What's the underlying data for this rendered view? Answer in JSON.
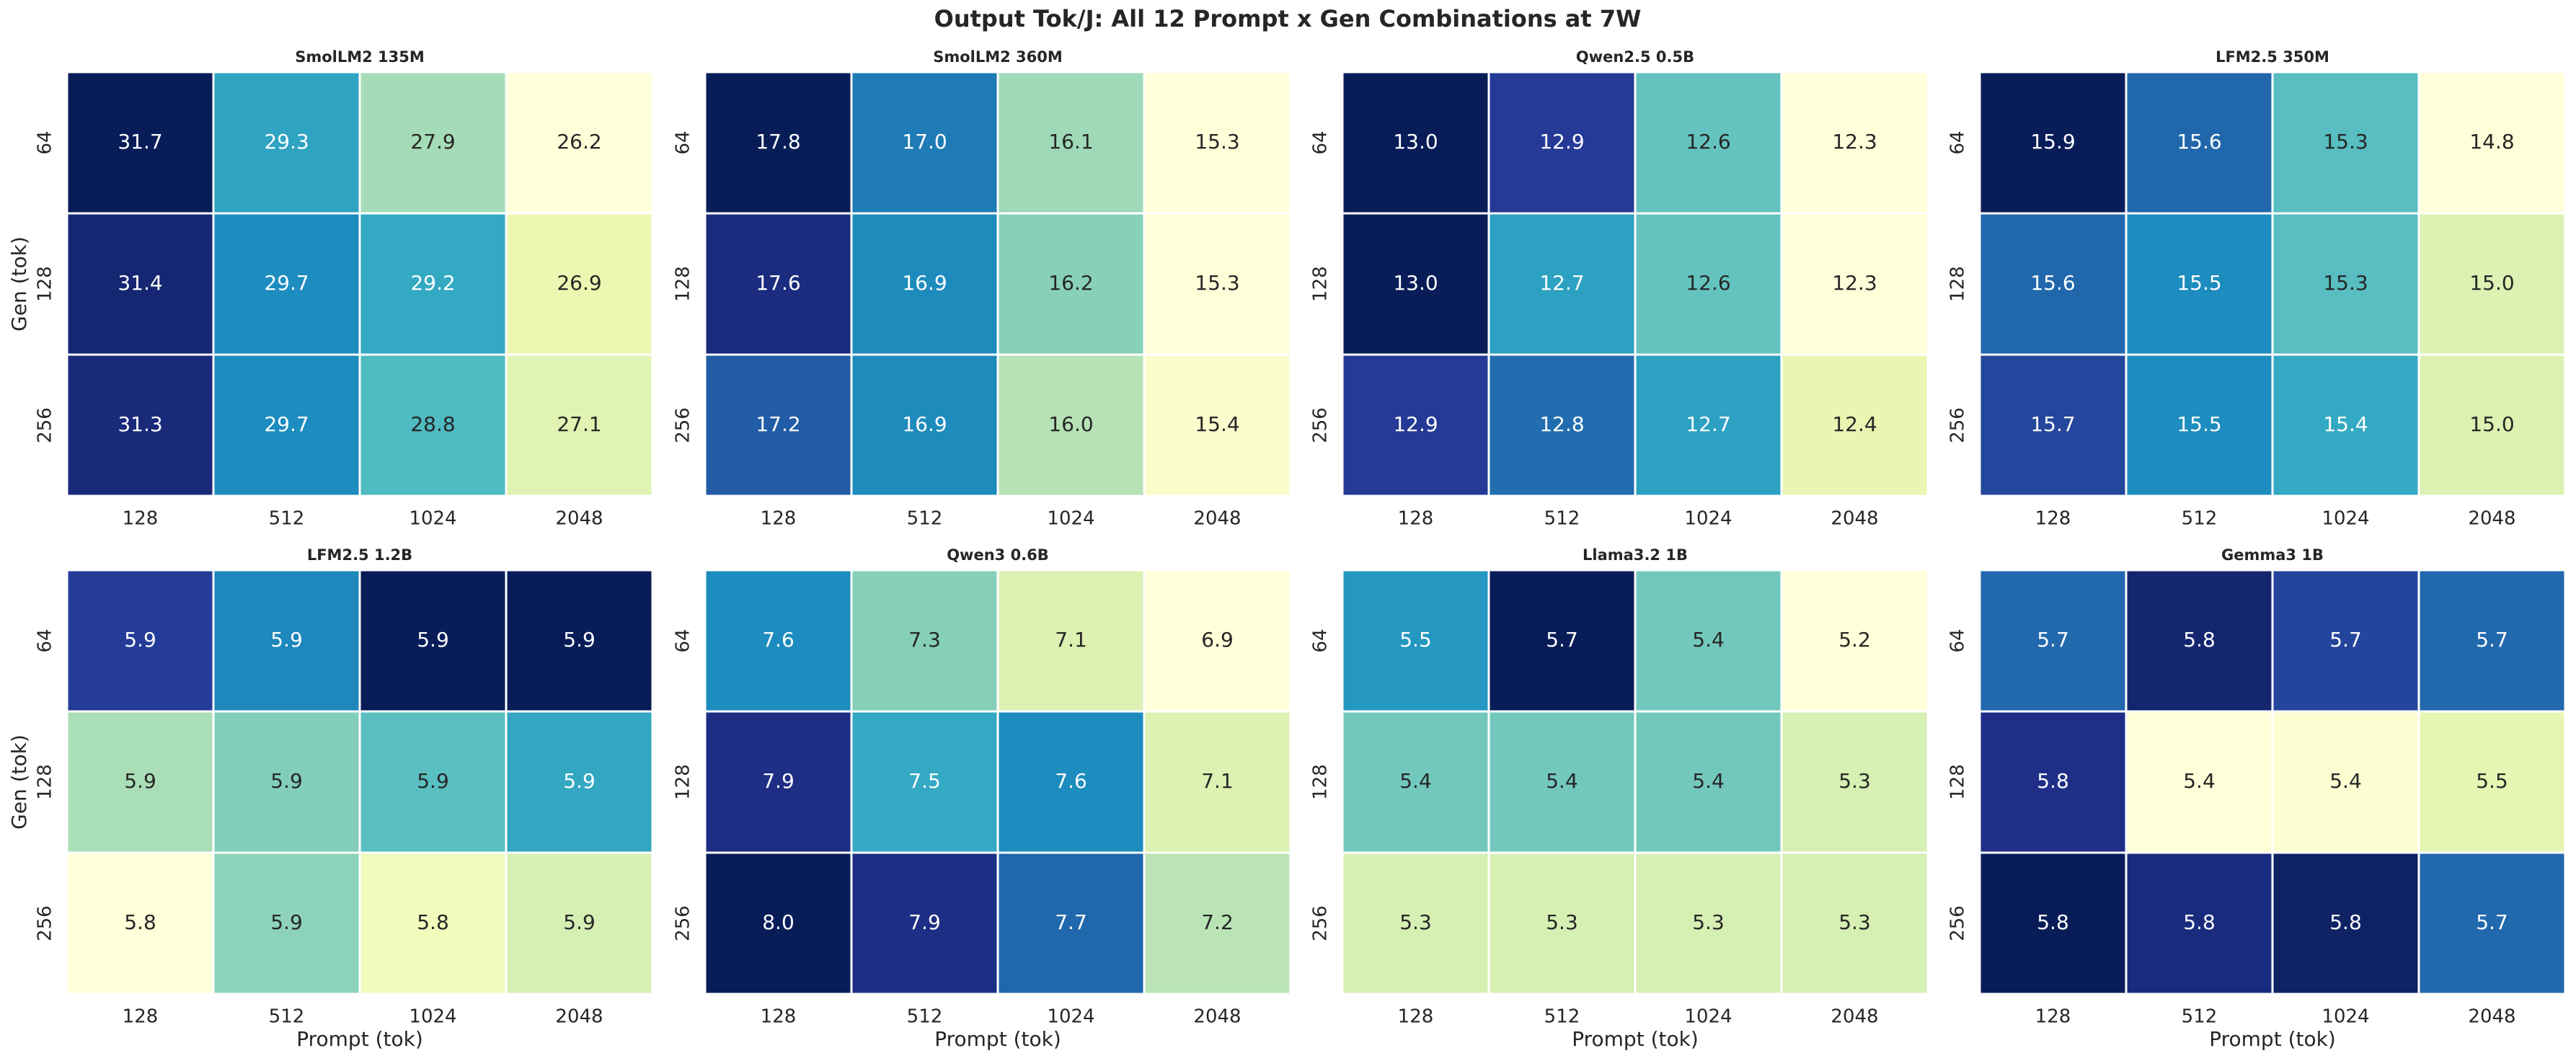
{
  "title": "Output Tok/J: All 12 Prompt x Gen Combinations at 7W",
  "chart_data": [
    {
      "type": "heatmap",
      "title": "SmolLM2 135M",
      "colormap": "YlGnBu",
      "ylabel": "Gen (tok)",
      "x_categories": [
        "128",
        "512",
        "1024",
        "2048"
      ],
      "y_categories": [
        "64",
        "128",
        "256"
      ],
      "values": [
        [
          31.7,
          29.3,
          27.9,
          26.2
        ],
        [
          31.4,
          29.7,
          29.2,
          26.9
        ],
        [
          31.3,
          29.7,
          28.8,
          27.1
        ]
      ],
      "value_labels": [
        [
          "31.7",
          "29.3",
          "27.9",
          "26.2"
        ],
        [
          "31.4",
          "29.7",
          "29.2",
          "26.9"
        ],
        [
          "31.3",
          "29.7",
          "28.8",
          "27.1"
        ]
      ]
    },
    {
      "type": "heatmap",
      "title": "SmolLM2 360M",
      "colormap": "YlGnBu",
      "x_categories": [
        "128",
        "512",
        "1024",
        "2048"
      ],
      "y_categories": [
        "64",
        "128",
        "256"
      ],
      "values": [
        [
          17.8,
          17.0,
          16.1,
          15.3
        ],
        [
          17.6,
          16.9,
          16.2,
          15.3
        ],
        [
          17.2,
          16.9,
          16.0,
          15.4
        ]
      ],
      "value_labels": [
        [
          "17.8",
          "17.0",
          "16.1",
          "15.3"
        ],
        [
          "17.6",
          "16.9",
          "16.2",
          "15.3"
        ],
        [
          "17.2",
          "16.9",
          "16.0",
          "15.4"
        ]
      ]
    },
    {
      "type": "heatmap",
      "title": "Qwen2.5 0.5B",
      "colormap": "YlGnBu",
      "x_categories": [
        "128",
        "512",
        "1024",
        "2048"
      ],
      "y_categories": [
        "64",
        "128",
        "256"
      ],
      "values": [
        [
          13.0,
          12.9,
          12.6,
          12.3
        ],
        [
          13.0,
          12.7,
          12.6,
          12.3
        ],
        [
          12.9,
          12.8,
          12.7,
          12.4
        ]
      ],
      "value_labels": [
        [
          "13.0",
          "12.9",
          "12.6",
          "12.3"
        ],
        [
          "13.0",
          "12.7",
          "12.6",
          "12.3"
        ],
        [
          "12.9",
          "12.8",
          "12.7",
          "12.4"
        ]
      ]
    },
    {
      "type": "heatmap",
      "title": "LFM2.5 350M",
      "colormap": "YlGnBu",
      "x_categories": [
        "128",
        "512",
        "1024",
        "2048"
      ],
      "y_categories": [
        "64",
        "128",
        "256"
      ],
      "values": [
        [
          15.9,
          15.6,
          15.3,
          14.8
        ],
        [
          15.6,
          15.5,
          15.3,
          15.0
        ],
        [
          15.7,
          15.5,
          15.4,
          15.0
        ]
      ],
      "value_labels": [
        [
          "15.9",
          "15.6",
          "15.3",
          "14.8"
        ],
        [
          "15.6",
          "15.5",
          "15.3",
          "15.0"
        ],
        [
          "15.7",
          "15.5",
          "15.4",
          "15.0"
        ]
      ]
    },
    {
      "type": "heatmap",
      "title": "LFM2.5 1.2B",
      "colormap": "YlGnBu",
      "ylabel": "Gen (tok)",
      "xlabel": "Prompt (tok)",
      "x_categories": [
        "128",
        "512",
        "1024",
        "2048"
      ],
      "y_categories": [
        "64",
        "128",
        "256"
      ],
      "values": [
        [
          5.925,
          5.905,
          5.94,
          5.94
        ],
        [
          5.87,
          5.877,
          5.885,
          5.895
        ],
        [
          5.84,
          5.875,
          5.849,
          5.86
        ]
      ],
      "value_labels": [
        [
          "5.9",
          "5.9",
          "5.9",
          "5.9"
        ],
        [
          "5.9",
          "5.9",
          "5.9",
          "5.9"
        ],
        [
          "5.8",
          "5.9",
          "5.8",
          "5.9"
        ]
      ]
    },
    {
      "type": "heatmap",
      "title": "Qwen3 0.6B",
      "colormap": "YlGnBu",
      "xlabel": "Prompt (tok)",
      "x_categories": [
        "128",
        "512",
        "1024",
        "2048"
      ],
      "y_categories": [
        "64",
        "128",
        "256"
      ],
      "values": [
        [
          7.6,
          7.3,
          7.1,
          6.9
        ],
        [
          7.9,
          7.5,
          7.6,
          7.1
        ],
        [
          8.0,
          7.9,
          7.7,
          7.2
        ]
      ],
      "value_labels": [
        [
          "7.6",
          "7.3",
          "7.1",
          "6.9"
        ],
        [
          "7.9",
          "7.5",
          "7.6",
          "7.1"
        ],
        [
          "8.0",
          "7.9",
          "7.7",
          "7.2"
        ]
      ]
    },
    {
      "type": "heatmap",
      "title": "Llama3.2 1B",
      "colormap": "YlGnBu",
      "xlabel": "Prompt (tok)",
      "x_categories": [
        "128",
        "512",
        "1024",
        "2048"
      ],
      "y_categories": [
        "64",
        "128",
        "256"
      ],
      "values": [
        [
          5.5,
          5.7,
          5.4,
          5.2
        ],
        [
          5.4,
          5.4,
          5.4,
          5.3
        ],
        [
          5.3,
          5.3,
          5.3,
          5.3
        ]
      ],
      "value_labels": [
        [
          "5.5",
          "5.7",
          "5.4",
          "5.2"
        ],
        [
          "5.4",
          "5.4",
          "5.4",
          "5.3"
        ],
        [
          "5.3",
          "5.3",
          "5.3",
          "5.3"
        ]
      ]
    },
    {
      "type": "heatmap",
      "title": "Gemma3 1B",
      "colormap": "YlGnBu",
      "xlabel": "Prompt (tok)",
      "x_categories": [
        "128",
        "512",
        "1024",
        "2048"
      ],
      "y_categories": [
        "64",
        "128",
        "256"
      ],
      "values": [
        [
          5.69,
          5.78,
          5.73,
          5.69
        ],
        [
          5.76,
          5.4,
          5.41,
          5.46
        ],
        [
          5.8,
          5.77,
          5.79,
          5.69
        ]
      ],
      "value_labels": [
        [
          "5.7",
          "5.8",
          "5.7",
          "5.7"
        ],
        [
          "5.8",
          "5.4",
          "5.4",
          "5.5"
        ],
        [
          "5.8",
          "5.8",
          "5.8",
          "5.7"
        ]
      ]
    }
  ]
}
